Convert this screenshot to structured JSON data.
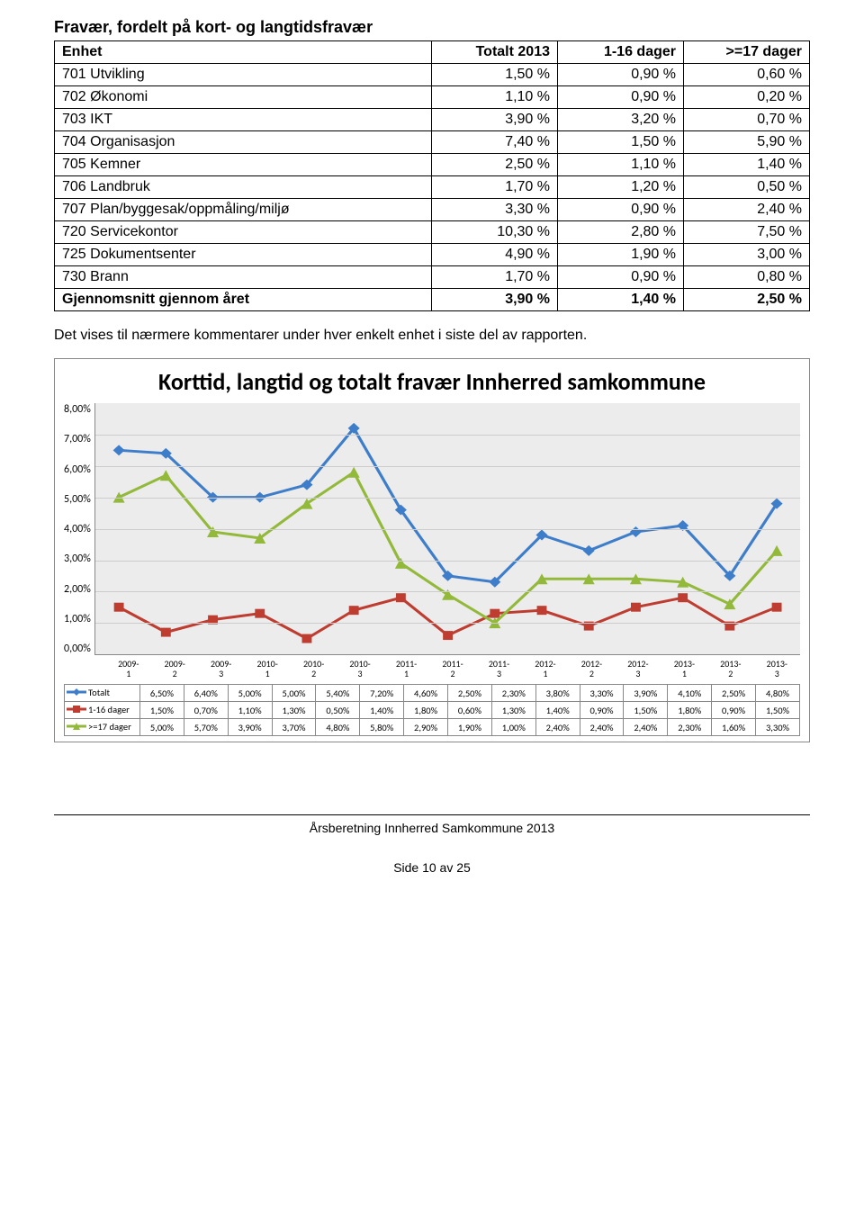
{
  "title": "Fravær, fordelt på kort- og langtidsfravær",
  "table": {
    "headers": [
      "Enhet",
      "Totalt 2013",
      "1-16 dager",
      ">=17 dager"
    ],
    "rows": [
      [
        "701 Utvikling",
        "1,50 %",
        "0,90 %",
        "0,60 %"
      ],
      [
        "702 Økonomi",
        "1,10 %",
        "0,90 %",
        "0,20 %"
      ],
      [
        "703 IKT",
        "3,90 %",
        "3,20 %",
        "0,70 %"
      ],
      [
        "704 Organisasjon",
        "7,40 %",
        "1,50 %",
        "5,90 %"
      ],
      [
        "705 Kemner",
        "2,50 %",
        "1,10 %",
        "1,40 %"
      ],
      [
        "706 Landbruk",
        "1,70 %",
        "1,20 %",
        "0,50 %"
      ],
      [
        "707 Plan/byggesak/oppmåling/miljø",
        "3,30 %",
        "0,90 %",
        "2,40 %"
      ],
      [
        "720 Servicekontor",
        "10,30 %",
        "2,80 %",
        "7,50 %"
      ],
      [
        "725 Dokumentsenter",
        "4,90 %",
        "1,90 %",
        "3,00 %"
      ],
      [
        "730 Brann",
        "1,70 %",
        "0,90 %",
        "0,80 %"
      ],
      [
        "Gjennomsnitt gjennom året",
        "3,90 %",
        "1,40 %",
        "2,50 %"
      ]
    ]
  },
  "description": "Det vises til nærmere kommentarer under hver enkelt enhet i siste del av rapporten.",
  "chart": {
    "title": "Korttid, langtid og totalt fravær Innherred samkommune",
    "type": "line",
    "background_color": "#ececec",
    "grid_color": "#cccccc",
    "ylim": [
      0,
      8
    ],
    "ytick_step": 1,
    "yticks": [
      "8,00%",
      "7,00%",
      "6,00%",
      "5,00%",
      "4,00%",
      "3,00%",
      "2,00%",
      "1,00%",
      "0,00%"
    ],
    "categories": [
      "2009-1",
      "2009-2",
      "2009-3",
      "2010-1",
      "2010-2",
      "2010-3",
      "2011-1",
      "2011-2",
      "2011-3",
      "2012-1",
      "2012-2",
      "2012-3",
      "2013-1",
      "2013-2",
      "2013-3"
    ],
    "series": [
      {
        "name": "Totalt",
        "color": "#3d7dca",
        "marker": "diamond",
        "line_width": 3,
        "values": [
          6.5,
          6.4,
          5.0,
          5.0,
          5.4,
          7.2,
          4.6,
          2.5,
          2.3,
          3.8,
          3.3,
          3.9,
          4.1,
          2.5,
          4.8
        ],
        "labels": [
          "6,50%",
          "6,40%",
          "5,00%",
          "5,00%",
          "5,40%",
          "7,20%",
          "4,60%",
          "2,50%",
          "2,30%",
          "3,80%",
          "3,30%",
          "3,90%",
          "4,10%",
          "2,50%",
          "4,80%"
        ]
      },
      {
        "name": "1-16 dager",
        "color": "#be3c30",
        "marker": "square",
        "line_width": 3,
        "values": [
          1.5,
          0.7,
          1.1,
          1.3,
          0.5,
          1.4,
          1.8,
          0.6,
          1.3,
          1.4,
          0.9,
          1.5,
          1.8,
          0.9,
          1.5
        ],
        "labels": [
          "1,50%",
          "0,70%",
          "1,10%",
          "1,30%",
          "0,50%",
          "1,40%",
          "1,80%",
          "0,60%",
          "1,30%",
          "1,40%",
          "0,90%",
          "1,50%",
          "1,80%",
          "0,90%",
          "1,50%"
        ]
      },
      {
        "name": ">=17 dager",
        "color": "#93b93b",
        "marker": "triangle",
        "line_width": 3,
        "values": [
          5.0,
          5.7,
          3.9,
          3.7,
          4.8,
          5.8,
          2.9,
          1.9,
          1.0,
          2.4,
          2.4,
          2.4,
          2.3,
          1.6,
          3.3
        ],
        "labels": [
          "5,00%",
          "5,70%",
          "3,90%",
          "3,70%",
          "4,80%",
          "5,80%",
          "2,90%",
          "1,90%",
          "1,00%",
          "2,40%",
          "2,40%",
          "2,40%",
          "2,30%",
          "1,60%",
          "3,30%"
        ]
      }
    ]
  },
  "footer": {
    "line": "Årsberetning Innherred Samkommune 2013",
    "page": "Side 10 av 25"
  }
}
